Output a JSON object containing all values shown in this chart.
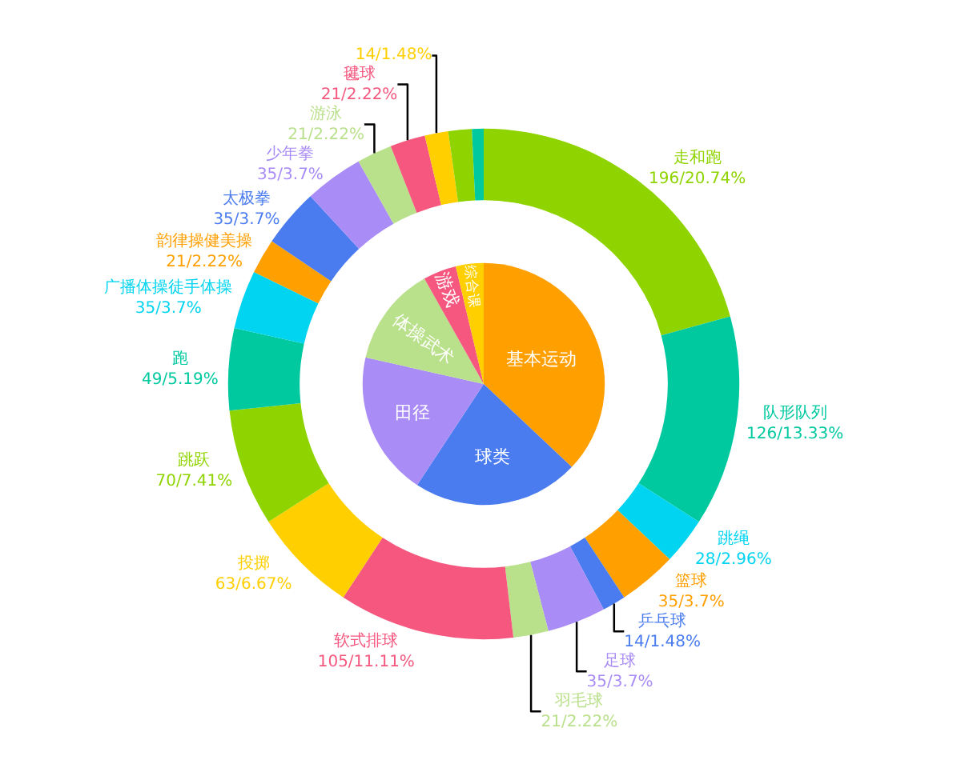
{
  "chart_data": [
    {
      "type": "donut",
      "categories": [
        "走和跑",
        "队形队列",
        "跳绳",
        "篮球",
        "乒乓球",
        "足球",
        "羽毛球",
        "软式排球",
        "投掷",
        "跳跃",
        "跑",
        "广播体操徒手体操",
        "韵律操健美操",
        "太极拳",
        "少年拳",
        "游泳",
        "毽球",
        null,
        null,
        null
      ],
      "values": [
        196,
        126,
        28,
        35,
        14,
        35,
        21,
        105,
        63,
        70,
        49,
        35,
        21,
        35,
        35,
        21,
        21,
        14,
        14,
        7
      ],
      "value_labels": [
        "196/20.74%",
        "126/13.33%",
        "28/2.96%",
        "35/3.7%",
        "14/1.48%",
        "35/3.7%",
        "21/2.22%",
        "105/11.11%",
        "63/6.67%",
        "70/7.41%",
        "49/5.19%",
        "35/3.7%",
        "21/2.22%",
        "35/3.7%",
        "35/3.7%",
        "21/2.22%",
        "21/2.22%",
        "14/1.48%",
        null,
        null
      ],
      "colors": [
        "#8fd400",
        "#00c9a0",
        "#00d4f0",
        "#ff9f00",
        "#4a7cf0",
        "#a98cf5",
        "#b9e08a",
        "#f5577f",
        "#ffcf00",
        "#8fd400",
        "#00c9a0",
        "#00d4f0",
        "#ff9f00",
        "#4a7cf0",
        "#a98cf5",
        "#b9e08a",
        "#f5577f",
        "#ffcf00",
        "#8fd400",
        "#00c9a0"
      ]
    },
    {
      "type": "pie",
      "categories": [
        "基本运动",
        "球类",
        "田径",
        "体操武术",
        "游戏",
        "综合课"
      ],
      "values": [
        37.04,
        22.22,
        19.26,
        13.33,
        4.44,
        3.71
      ],
      "colors": [
        "#ff9f00",
        "#4a7cf0",
        "#a98cf5",
        "#b9e08a",
        "#f5577f",
        "#ffcf00"
      ]
    }
  ]
}
